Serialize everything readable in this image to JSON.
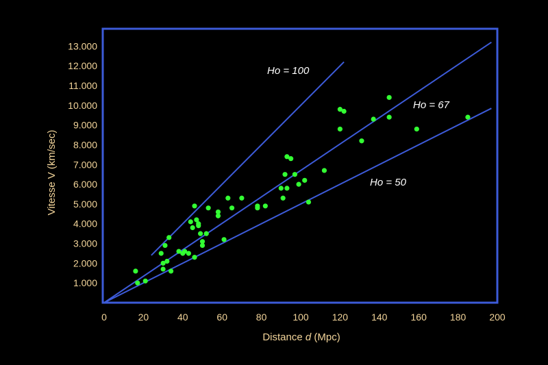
{
  "chart_data": {
    "type": "scatter",
    "xlabel": "Distance d  (Mpc)",
    "xlabel_parts": [
      "Distance ",
      "d",
      "  (Mpc)"
    ],
    "ylabel": "Vitesse V  (km/sec)",
    "xlim": [
      0,
      200
    ],
    "ylim": [
      0,
      13500
    ],
    "x_ticks": [
      0,
      20,
      40,
      60,
      80,
      100,
      120,
      140,
      160,
      180,
      200
    ],
    "x_tick_labels": [
      "0",
      "20",
      "40",
      "60",
      "80",
      "100",
      "120",
      "140",
      "160",
      "180",
      "200"
    ],
    "y_ticks": [
      1000,
      2000,
      3000,
      4000,
      5000,
      6000,
      7000,
      8000,
      9000,
      10000,
      11000,
      12000,
      13000
    ],
    "y_tick_labels": [
      "1.000",
      "2.000",
      "3.000",
      "4.000",
      "5.000",
      "6.000",
      "7.000",
      "8.000",
      "9.000",
      "10.000",
      "11.000",
      "12.000",
      "13.000"
    ],
    "grid": false,
    "legend": "none",
    "colors": {
      "background": "#000000",
      "frame": "#3d5bd9",
      "lines": "#3d5bd9",
      "points": "#33ff33",
      "labels": "#f2d49a",
      "line_labels": "#ffffff"
    },
    "lines": [
      {
        "label": "Ho = 100",
        "slope": 100,
        "x_range": [
          24,
          122
        ]
      },
      {
        "label": "Ho = 67",
        "slope": 67,
        "x_range": [
          0,
          197
        ]
      },
      {
        "label": "Ho = 50",
        "slope": 50,
        "x_range": [
          0,
          197
        ]
      }
    ],
    "points": [
      [
        16,
        1600
      ],
      [
        17,
        1000
      ],
      [
        21,
        1100
      ],
      [
        29,
        2500
      ],
      [
        30,
        1700
      ],
      [
        30,
        2000
      ],
      [
        31,
        2900
      ],
      [
        32,
        2100
      ],
      [
        33,
        3300
      ],
      [
        34,
        1600
      ],
      [
        38,
        2600
      ],
      [
        40,
        2500
      ],
      [
        41,
        2600
      ],
      [
        43,
        2500
      ],
      [
        44,
        4100
      ],
      [
        45,
        3800
      ],
      [
        46,
        4900
      ],
      [
        46,
        2300
      ],
      [
        47,
        4200
      ],
      [
        48,
        3900
      ],
      [
        48,
        4000
      ],
      [
        49,
        3500
      ],
      [
        50,
        3100
      ],
      [
        50,
        2900
      ],
      [
        52,
        3500
      ],
      [
        53,
        4800
      ],
      [
        58,
        4600
      ],
      [
        58,
        4400
      ],
      [
        61,
        3200
      ],
      [
        63,
        5300
      ],
      [
        65,
        4800
      ],
      [
        70,
        5300
      ],
      [
        78,
        4900
      ],
      [
        78,
        4800
      ],
      [
        82,
        4900
      ],
      [
        90,
        5800
      ],
      [
        91,
        5300
      ],
      [
        92,
        6500
      ],
      [
        93,
        5800
      ],
      [
        93,
        7400
      ],
      [
        95,
        7300
      ],
      [
        97,
        6500
      ],
      [
        99,
        6000
      ],
      [
        102,
        6200
      ],
      [
        104,
        5100
      ],
      [
        112,
        6700
      ],
      [
        120,
        8800
      ],
      [
        120,
        9800
      ],
      [
        122,
        9700
      ],
      [
        131,
        8200
      ],
      [
        137,
        9300
      ],
      [
        145,
        9400
      ],
      [
        145,
        10400
      ],
      [
        159,
        8800
      ],
      [
        185,
        9400
      ]
    ]
  }
}
